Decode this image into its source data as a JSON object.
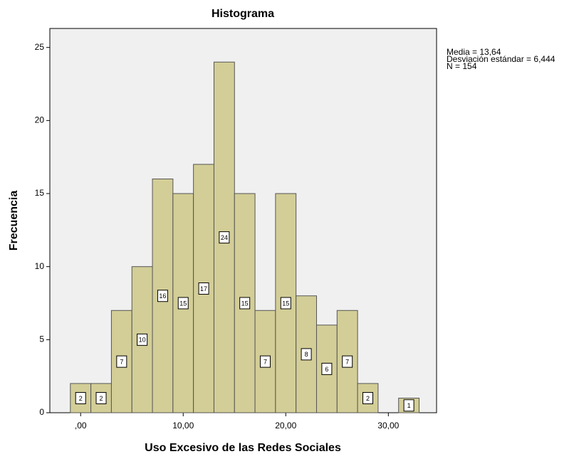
{
  "chart_data": {
    "type": "histogram",
    "title": "Histograma",
    "x_label": "Uso Excesivo de las Redes Sociales",
    "y_label": "Frecuencia",
    "bins": [
      -1,
      1,
      3,
      5,
      7,
      9,
      11,
      13,
      15,
      17,
      19,
      21,
      23,
      25,
      27,
      29,
      31,
      33
    ],
    "values": [
      2,
      2,
      7,
      10,
      16,
      15,
      17,
      24,
      15,
      7,
      15,
      8,
      6,
      7,
      2,
      0,
      1
    ],
    "color": "#d3ce97",
    "xlim": [
      -3,
      34.7
    ],
    "xticks": [
      {
        "value": 0,
        "label": ",00"
      },
      {
        "value": 10,
        "label": "10,00"
      },
      {
        "value": 20,
        "label": "20,00"
      },
      {
        "value": 30,
        "label": "30,00"
      }
    ],
    "ylim": [
      0,
      26.3
    ],
    "yticks": [
      0,
      5,
      10,
      15,
      20,
      25
    ],
    "annotations": [
      "Media = 13,64",
      "Desviación estándar = 6,444",
      "N = 154"
    ]
  }
}
